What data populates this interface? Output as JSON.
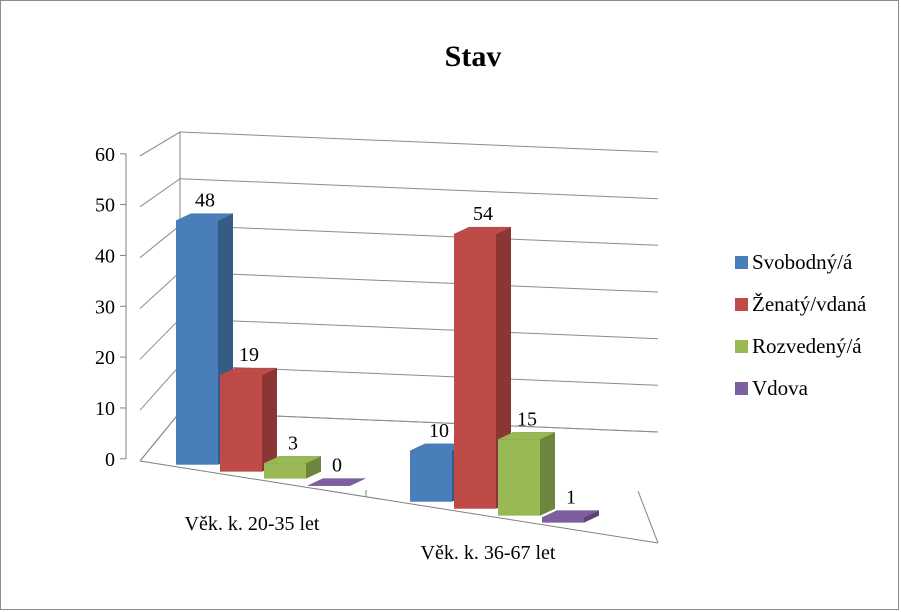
{
  "chart_data": {
    "type": "bar",
    "title": "Stav",
    "categories": [
      "Věk. k. 20-35 let",
      "Věk. k. 36-67 let"
    ],
    "series": [
      {
        "name": "Svobodný/á",
        "values": [
          48,
          10
        ],
        "color": "#4a7ebb"
      },
      {
        "name": "Ženatý/vdaná",
        "values": [
          19,
          54
        ],
        "color": "#be4b48"
      },
      {
        "name": "Rozvedený/á",
        "values": [
          3,
          15
        ],
        "color": "#98b954"
      },
      {
        "name": "Vdova",
        "values": [
          0,
          1
        ],
        "color": "#7d5fa0"
      }
    ],
    "ylim": [
      0,
      60
    ],
    "yticks": [
      "0",
      "10",
      "20",
      "30",
      "40",
      "50",
      "60"
    ],
    "grid": true,
    "legend": "right",
    "view": "3d"
  }
}
